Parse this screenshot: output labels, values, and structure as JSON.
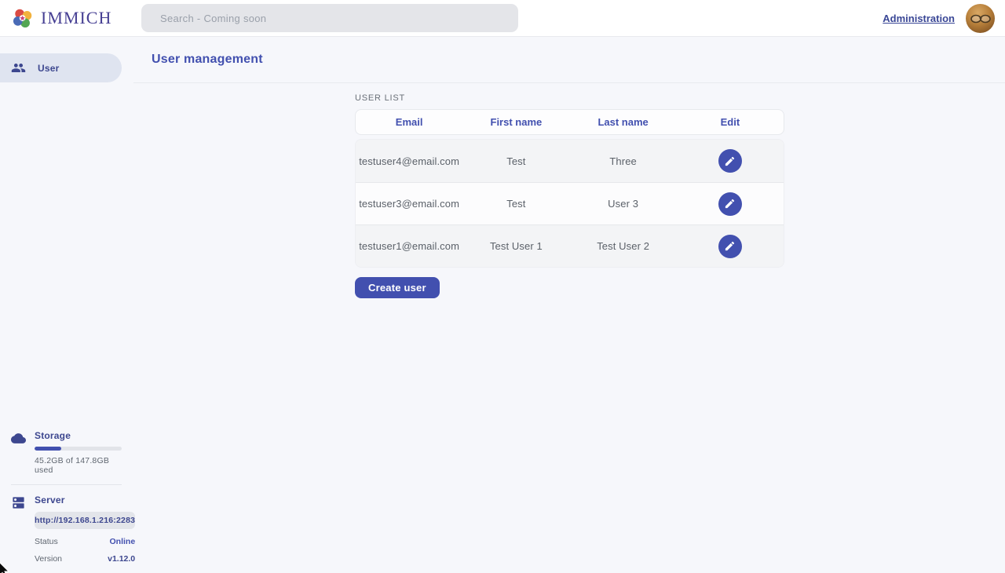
{
  "app": {
    "name": "IMMICH"
  },
  "topbar": {
    "search_placeholder": "Search - Coming soon",
    "administration_label": "Administration",
    "avatar_icon": "user-avatar-photo"
  },
  "sidebar": {
    "items": [
      {
        "label": "User",
        "icon": "users-icon",
        "active": true
      }
    ],
    "storage": {
      "icon": "cloud-icon",
      "title": "Storage",
      "usage_text": "45.2GB of 147.8GB used",
      "percent_used": 30.6
    },
    "server": {
      "icon": "server-icon",
      "title": "Server",
      "url": "http://192.168.1.216:2283",
      "status_label": "Status",
      "status_value": "Online",
      "version_label": "Version",
      "version_value": "v1.12.0"
    }
  },
  "main": {
    "page_title": "User management",
    "section_title": "USER LIST",
    "table": {
      "columns": [
        "Email",
        "First name",
        "Last name",
        "Edit"
      ],
      "edit_icon": "pencil-icon",
      "rows": [
        {
          "email": "testuser4@email.com",
          "first_name": "Test",
          "last_name": "Three"
        },
        {
          "email": "testuser3@email.com",
          "first_name": "Test",
          "last_name": "User 3"
        },
        {
          "email": "testuser1@email.com",
          "first_name": "Test User 1",
          "last_name": "Test User 2"
        }
      ]
    },
    "create_user_label": "Create user"
  },
  "colors": {
    "primary": "#4250af",
    "pageBackground": "#f6f7fb",
    "statusOnline": "#4250af"
  }
}
